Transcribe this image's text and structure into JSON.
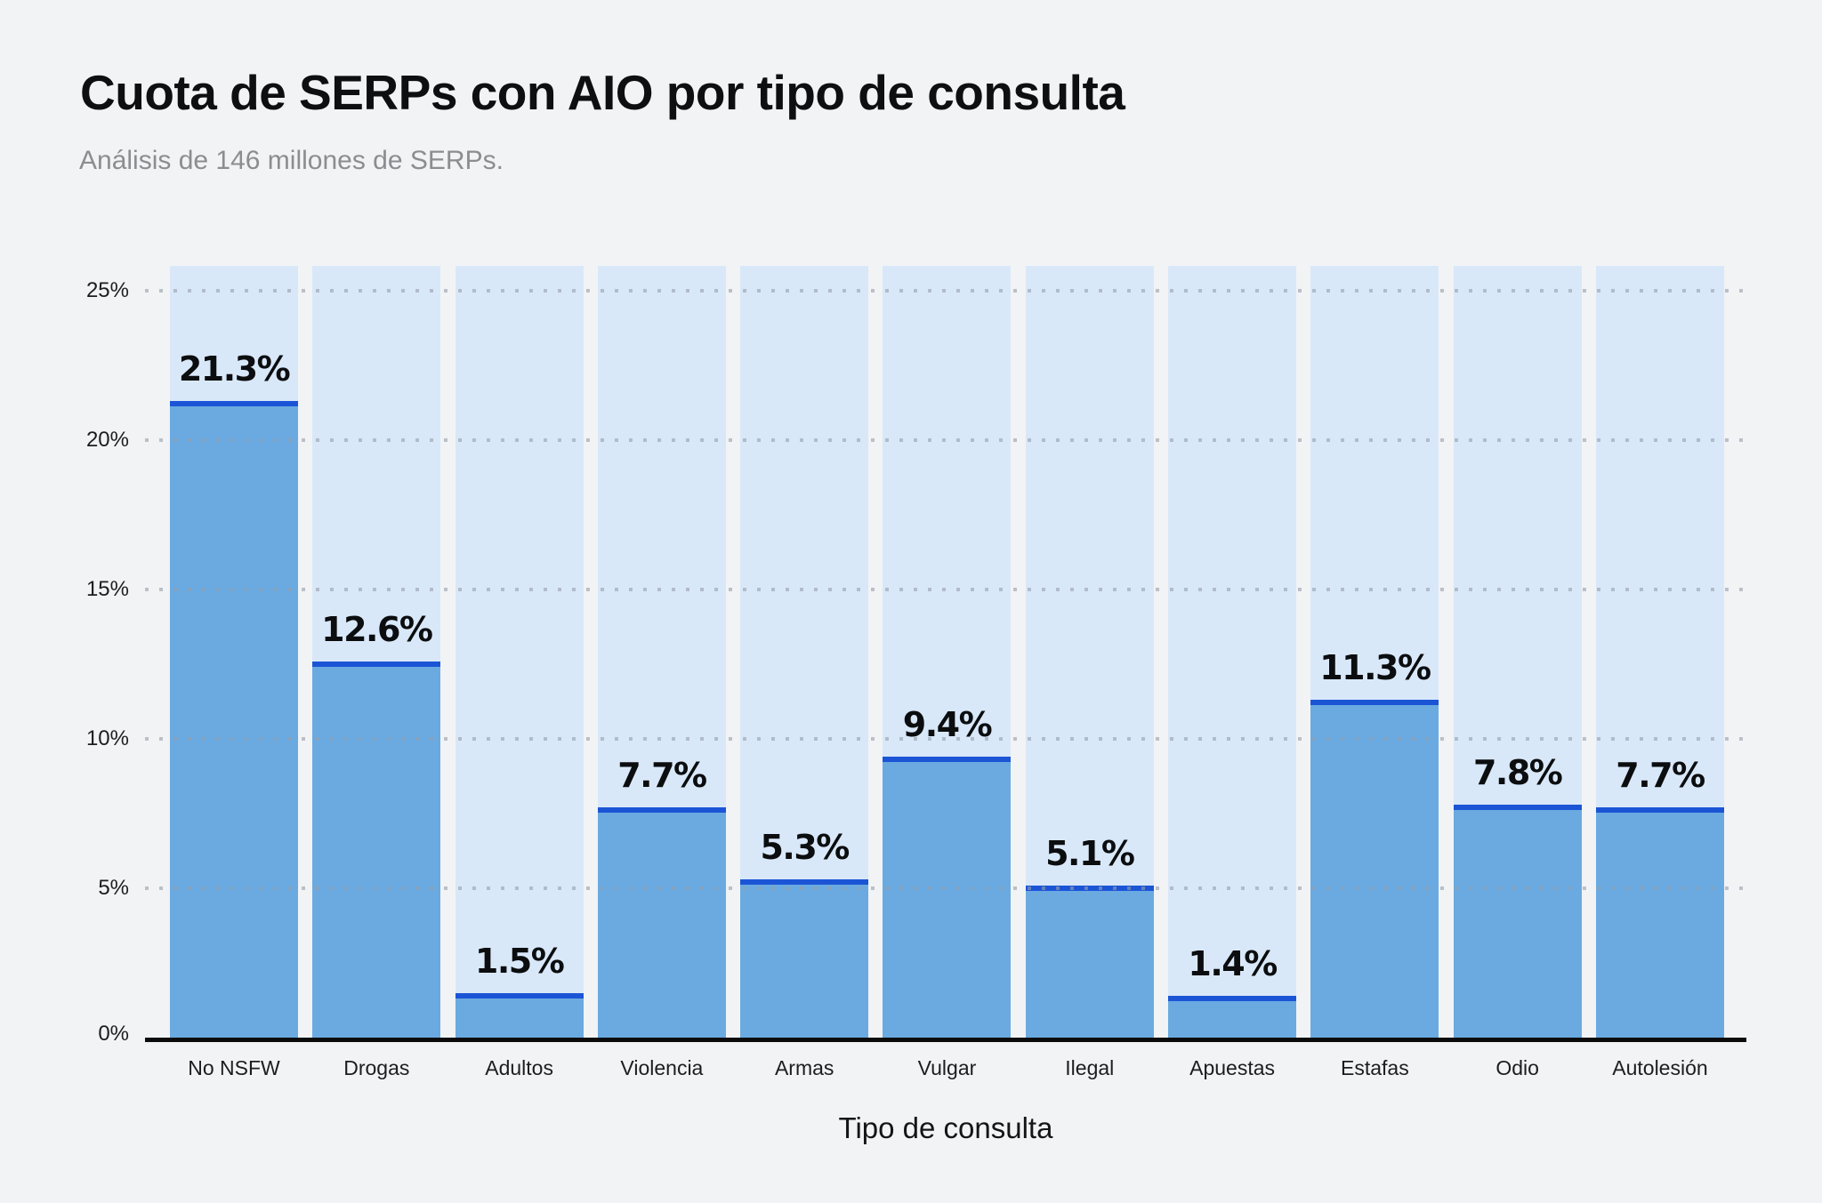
{
  "header": {
    "title": "Cuota de SERPs con AIO por tipo de consulta",
    "subtitle": "Análisis de 146 millones de SERPs."
  },
  "chart_data": {
    "type": "bar",
    "title": "Cuota de SERPs con AIO por tipo de consulta",
    "subtitle": "Análisis de 146 millones de SERPs.",
    "categories": [
      "No NSFW",
      "Drogas",
      "Adultos",
      "Violencia",
      "Armas",
      "Vulgar",
      "Ilegal",
      "Apuestas",
      "Estafas",
      "Odio",
      "Autolesión"
    ],
    "values": [
      21.3,
      12.6,
      1.5,
      7.7,
      5.3,
      9.4,
      5.1,
      1.4,
      11.3,
      7.8,
      7.7
    ],
    "value_labels": [
      "21.3%",
      "12.6%",
      "1.5%",
      "7.7%",
      "5.3%",
      "9.4%",
      "5.1%",
      "1.4%",
      "11.3%",
      "7.8%",
      "7.7%"
    ],
    "xlabel": "Tipo de consulta",
    "ylabel": "",
    "yticks": [
      "0%",
      "5%",
      "10%",
      "15%",
      "20%",
      "25%"
    ],
    "ytick_values": [
      0,
      5,
      10,
      15,
      20,
      25
    ],
    "ylim": [
      0,
      25.8
    ],
    "grid": "horizontal-dotted",
    "legend": "none",
    "colors": {
      "page_background": "#f2f3f5",
      "bar_background": "#d9e8f9",
      "bar_fill": "#6aaae1",
      "bar_top_line": "#1b55d6",
      "grid_dot": "#c3c7cd",
      "axis_line": "#0b0b0c",
      "title_text": "#0d0f11",
      "subtitle_text": "#8c8d91",
      "label_text": "#1b1d1f"
    }
  }
}
